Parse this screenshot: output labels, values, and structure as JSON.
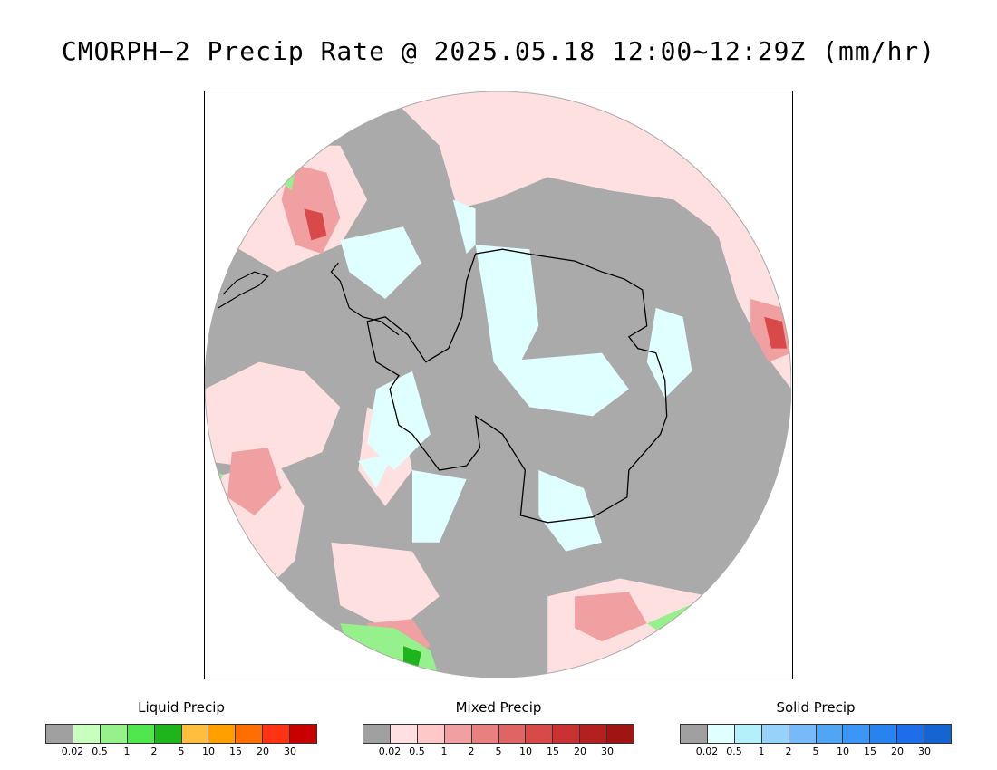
{
  "title": "CMORPH−2 Precip Rate @ 2025.05.18 12:00~12:29Z (mm/hr)",
  "map": {
    "projection": "south-polar-stereographic",
    "no_precip_color": "#aaaaaa",
    "coastline_color": "#000000",
    "precip_regions": [
      {
        "type": "mixed",
        "location": "Drake Passage / South Pacific",
        "color": "#ffe0e0"
      },
      {
        "type": "mixed",
        "location": "South Atlantic",
        "color": "#ffe0e0"
      },
      {
        "type": "mixed",
        "location": "Southern Indian Ocean",
        "color": "#f0a0a0"
      },
      {
        "type": "solid",
        "location": "Antarctica interior",
        "color": "#e0ffff"
      },
      {
        "type": "liquid",
        "location": "Southern Ocean south of Australia",
        "color": "#80e080"
      }
    ]
  },
  "legends": [
    {
      "name": "Liquid Precip",
      "colors": [
        "#a0a0a0",
        "#c8ffbe",
        "#96f08c",
        "#50e650",
        "#1eb41e",
        "#ffbe3c",
        "#ffa000",
        "#ff6e00",
        "#ff3214",
        "#c80000"
      ],
      "ticks": [
        "0.02",
        "0.5",
        "1",
        "2",
        "5",
        "10",
        "15",
        "20",
        "30"
      ]
    },
    {
      "name": "Mixed Precip",
      "colors": [
        "#a0a0a0",
        "#ffe0e0",
        "#ffc8c8",
        "#f0a0a0",
        "#e88080",
        "#e06464",
        "#d84a4a",
        "#c83232",
        "#b42020",
        "#a01414"
      ],
      "ticks": [
        "0.02",
        "0.5",
        "1",
        "2",
        "5",
        "10",
        "15",
        "20",
        "30"
      ]
    },
    {
      "name": "Solid Precip",
      "colors": [
        "#a0a0a0",
        "#e0ffff",
        "#b4f0fa",
        "#96d2fa",
        "#78b9fa",
        "#50a5f5",
        "#3c96f5",
        "#2882f0",
        "#1e6eeb",
        "#1464d2"
      ],
      "ticks": [
        "0.02",
        "0.5",
        "1",
        "2",
        "5",
        "10",
        "15",
        "20",
        "30"
      ]
    }
  ]
}
